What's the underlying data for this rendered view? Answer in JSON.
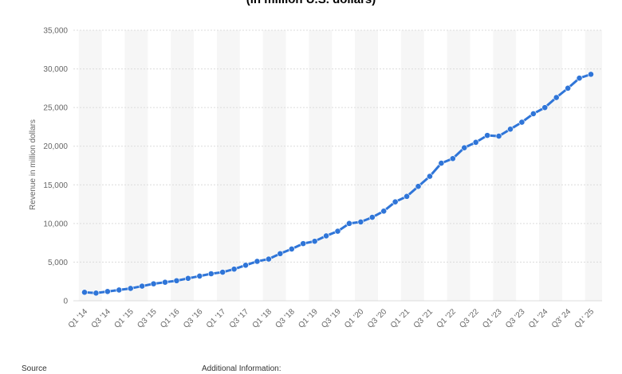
{
  "chart_data": {
    "type": "line",
    "title": "(in million U.S. dollars)",
    "ylabel": "Revenue in million dollars",
    "xlabel": "",
    "ylim": [
      0,
      35000
    ],
    "yticks": [
      0,
      5000,
      10000,
      15000,
      20000,
      25000,
      30000,
      35000
    ],
    "ytick_labels": [
      "0",
      "5,000",
      "10,000",
      "15,000",
      "20,000",
      "25,000",
      "30,000",
      "35,000"
    ],
    "grid": true,
    "categories": [
      "Q1 '14",
      "Q2 '14",
      "Q3 '14",
      "Q4 '14",
      "Q1 '15",
      "Q2 '15",
      "Q3 '15",
      "Q4 '15",
      "Q1 '16",
      "Q2 '16",
      "Q3 '16",
      "Q4 '16",
      "Q1 '17",
      "Q2 '17",
      "Q3 '17",
      "Q4 '17",
      "Q1 '18",
      "Q2 '18",
      "Q3 '18",
      "Q4 '18",
      "Q1 '19",
      "Q2 '19",
      "Q3 '19",
      "Q4 '19",
      "Q1 '20",
      "Q2 '20",
      "Q3 '20",
      "Q4 '20",
      "Q1 '21",
      "Q2 '21",
      "Q3 '21",
      "Q4 '21",
      "Q1 '22",
      "Q2 '22",
      "Q3 '22",
      "Q4 '22",
      "Q1 '23",
      "Q2 '23",
      "Q3 '23",
      "Q4 '23",
      "Q1 '24",
      "Q2 '24",
      "Q3 '24",
      "Q4 '24",
      "Q1 '25"
    ],
    "xtick_labels": [
      "Q1 '14",
      "Q3 '14",
      "Q1 '15",
      "Q3 '15",
      "Q1 '16",
      "Q3 '16",
      "Q1 '17",
      "Q3 '17",
      "Q1 '18",
      "Q3 '18",
      "Q1 '19",
      "Q3 '19",
      "Q1 '20",
      "Q3 '20",
      "Q1 '21",
      "Q3 '21",
      "Q1 '22",
      "Q3 '22",
      "Q1 '23",
      "Q3 '23",
      "Q1 '24",
      "Q3' 24",
      "Q1' 25"
    ],
    "series": [
      {
        "color": "#2f75d8",
        "values": [
          1100,
          1000,
          1200,
          1400,
          1600,
          1900,
          2200,
          2400,
          2600,
          2900,
          3200,
          3500,
          3700,
          4100,
          4600,
          5100,
          5400,
          6100,
          6700,
          7400,
          7700,
          8400,
          9000,
          10000,
          10200,
          10800,
          11600,
          12800,
          13500,
          14800,
          16100,
          17800,
          18400,
          19800,
          20500,
          21400,
          21300,
          22200,
          23100,
          24200,
          25000,
          26300,
          27500,
          28800,
          29300
        ]
      }
    ]
  },
  "footer": {
    "source_label": "Source",
    "additional_info_label": "Additional Information:"
  }
}
